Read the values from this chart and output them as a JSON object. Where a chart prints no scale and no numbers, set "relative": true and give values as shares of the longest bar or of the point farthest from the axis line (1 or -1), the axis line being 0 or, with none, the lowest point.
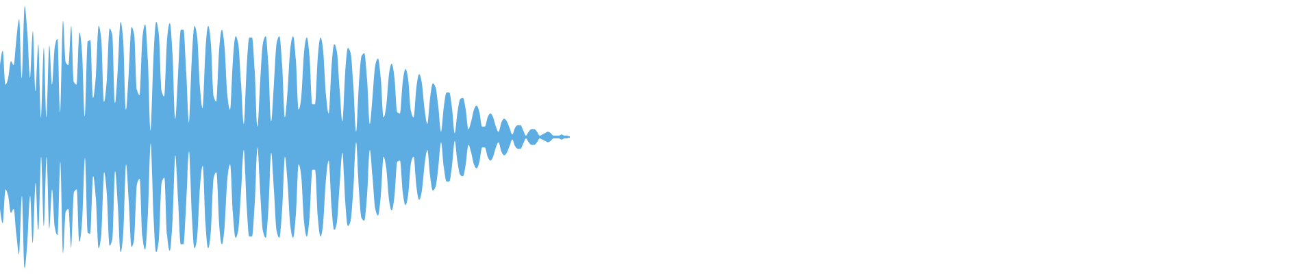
{
  "chart_data": {
    "type": "area",
    "relative": true,
    "categories": [
      null,
      null,
      null,
      null,
      null,
      null,
      null,
      null,
      null,
      null,
      null,
      null,
      null,
      null,
      null,
      null,
      null,
      null,
      null,
      null,
      null,
      null,
      null,
      null,
      null,
      null,
      null,
      null,
      null,
      null,
      null,
      null,
      null,
      null,
      null,
      null,
      null,
      null,
      null,
      null,
      null,
      null,
      null,
      null,
      null,
      null,
      null,
      null,
      null,
      null,
      null,
      null,
      null,
      null,
      null,
      null,
      null,
      null,
      null,
      null,
      null,
      null,
      null,
      null,
      null,
      null,
      null,
      null,
      null,
      null,
      null,
      null,
      null,
      null,
      null,
      null,
      null,
      null,
      null,
      null,
      null,
      null,
      null,
      null,
      null,
      null,
      null,
      null,
      null,
      null,
      null,
      null,
      null,
      null,
      null,
      null,
      null,
      null,
      null,
      null,
      null,
      null,
      null,
      null,
      null,
      null,
      null,
      null,
      null,
      null,
      null,
      null,
      null,
      null,
      null,
      null,
      null,
      null,
      null,
      null,
      null,
      null,
      null,
      null,
      null,
      null,
      null,
      null,
      null,
      null,
      null,
      null,
      null,
      null,
      null,
      null,
      null,
      null,
      null,
      null,
      null,
      null,
      null,
      null,
      null,
      null,
      null,
      null,
      null,
      null,
      null,
      null,
      null,
      null,
      null,
      null,
      null,
      null,
      null,
      null,
      null,
      null,
      null,
      null,
      null,
      null,
      null,
      null,
      null,
      null,
      null,
      null,
      null,
      null,
      null,
      null,
      null,
      null,
      null,
      null,
      null,
      null,
      null,
      null,
      null,
      null,
      null,
      null,
      null,
      null,
      null,
      null,
      null,
      null,
      null,
      null,
      null,
      null,
      null,
      null,
      null,
      null,
      null,
      null,
      null,
      null,
      null,
      null,
      null
    ],
    "ref_lines": [
      {
        "axis": "y",
        "value": 0,
        "color": "#5dade2"
      }
    ],
    "series": [
      {
        "color": "#5dade2",
        "values": [
          0.55,
          0.66,
          0.4,
          0.45,
          0.58,
          0.55,
          0.75,
          0.9,
          0.45,
          1,
          0.8,
          0.45,
          0.81,
          0.35,
          0.71,
          0.15,
          0.68,
          0.15,
          0.7,
          0.4,
          0.69,
          0.75,
          0.19,
          0.89,
          0.57,
          0.55,
          0.85,
          0.42,
          0.4,
          0.8,
          0.63,
          0.16,
          0.73,
          0.74,
          0.3,
          0.47,
          0.85,
          0.74,
          0.27,
          0.44,
          0.83,
          0.78,
          0.26,
          0.52,
          0.88,
          0.73,
          0.21,
          0.49,
          0.84,
          0.78,
          0.36,
          0.32,
          0.76,
          0.86,
          0.58,
          0.05,
          0.59,
          0.88,
          0.78,
          0.35,
          0.31,
          0.75,
          0.87,
          0.63,
          0.14,
          0.48,
          0.82,
          0.82,
          0.49,
          0.11,
          0.59,
          0.85,
          0.76,
          0.38,
          0.22,
          0.66,
          0.85,
          0.71,
          0.31,
          0.27,
          0.67,
          0.82,
          0.68,
          0.32,
          0.21,
          0.58,
          0.77,
          0.71,
          0.41,
          0.1,
          0.51,
          0.76,
          0.76,
          0.5,
          0.08,
          0.43,
          0.72,
          0.77,
          0.54,
          0.12,
          0.41,
          0.72,
          0.77,
          0.55,
          0.15,
          0.36,
          0.68,
          0.77,
          0.59,
          0.21,
          0.31,
          0.65,
          0.76,
          0.61,
          0.25,
          0.25,
          0.61,
          0.76,
          0.65,
          0.32,
          0.18,
          0.53,
          0.71,
          0.65,
          0.36,
          0.12,
          0.49,
          0.68,
          0.64,
          0.39,
          0.04,
          0.4,
          0.62,
          0.64,
          0.44,
          0.1,
          0.31,
          0.55,
          0.6,
          0.45,
          0.15,
          0.24,
          0.48,
          0.56,
          0.45,
          0.19,
          0.18,
          0.42,
          0.52,
          0.44,
          0.2,
          0.15,
          0.38,
          0.48,
          0.41,
          0.21,
          0.1,
          0.3,
          0.41,
          0.38,
          0.23,
          0.04,
          0.23,
          0.34,
          0.34,
          0.22,
          0.03,
          0.19,
          0.29,
          0.3,
          0.21,
          0.06,
          0.12,
          0.21,
          0.24,
          0.19,
          0.08,
          0.08,
          0.15,
          0.18,
          0.15,
          0.08,
          0.04,
          0.11,
          0.14,
          0.12,
          0.07,
          0.02,
          0.07,
          0.09,
          0.09,
          0.05,
          0.01,
          0.04,
          0.06,
          0.06,
          0.04,
          0.01,
          0.02,
          0.03,
          0.04,
          0.03,
          0.01,
          0.01,
          0.01,
          0.02,
          0.01,
          0.01,
          0
        ]
      },
      {
        "color": "#5dade2",
        "values": [
          -0.55,
          -0.66,
          -0.4,
          -0.45,
          -0.58,
          -0.55,
          -0.75,
          -0.9,
          -0.45,
          -1,
          -0.8,
          -0.45,
          -0.81,
          -0.35,
          -0.71,
          -0.15,
          -0.68,
          -0.15,
          -0.7,
          -0.4,
          -0.69,
          -0.75,
          -0.19,
          -0.89,
          -0.57,
          -0.55,
          -0.85,
          -0.42,
          -0.4,
          -0.8,
          -0.63,
          -0.16,
          -0.73,
          -0.74,
          -0.3,
          -0.47,
          -0.85,
          -0.74,
          -0.27,
          -0.44,
          -0.83,
          -0.78,
          -0.26,
          -0.52,
          -0.88,
          -0.73,
          -0.21,
          -0.49,
          -0.84,
          -0.78,
          -0.36,
          -0.32,
          -0.76,
          -0.86,
          -0.58,
          -0.05,
          -0.59,
          -0.88,
          -0.78,
          -0.35,
          -0.31,
          -0.75,
          -0.87,
          -0.63,
          -0.14,
          -0.48,
          -0.82,
          -0.82,
          -0.49,
          -0.11,
          -0.59,
          -0.85,
          -0.76,
          -0.38,
          -0.22,
          -0.66,
          -0.85,
          -0.71,
          -0.31,
          -0.27,
          -0.67,
          -0.82,
          -0.68,
          -0.32,
          -0.21,
          -0.58,
          -0.77,
          -0.71,
          -0.41,
          -0.1,
          -0.51,
          -0.76,
          -0.76,
          -0.5,
          -0.08,
          -0.43,
          -0.72,
          -0.77,
          -0.54,
          -0.12,
          -0.41,
          -0.72,
          -0.77,
          -0.55,
          -0.15,
          -0.36,
          -0.68,
          -0.77,
          -0.59,
          -0.21,
          -0.31,
          -0.65,
          -0.76,
          -0.61,
          -0.25,
          -0.25,
          -0.61,
          -0.76,
          -0.65,
          -0.32,
          -0.18,
          -0.53,
          -0.71,
          -0.65,
          -0.36,
          -0.12,
          -0.49,
          -0.68,
          -0.64,
          -0.39,
          -0.04,
          -0.4,
          -0.62,
          -0.64,
          -0.44,
          -0.1,
          -0.31,
          -0.55,
          -0.6,
          -0.45,
          -0.15,
          -0.24,
          -0.48,
          -0.56,
          -0.45,
          -0.19,
          -0.18,
          -0.42,
          -0.52,
          -0.44,
          -0.2,
          -0.15,
          -0.38,
          -0.48,
          -0.41,
          -0.21,
          -0.1,
          -0.3,
          -0.41,
          -0.38,
          -0.23,
          -0.04,
          -0.23,
          -0.34,
          -0.34,
          -0.22,
          -0.03,
          -0.19,
          -0.29,
          -0.3,
          -0.21,
          -0.06,
          -0.12,
          -0.21,
          -0.24,
          -0.19,
          -0.08,
          -0.08,
          -0.15,
          -0.18,
          -0.15,
          -0.08,
          -0.04,
          -0.11,
          -0.14,
          -0.12,
          -0.07,
          -0.02,
          -0.07,
          -0.09,
          -0.09,
          -0.05,
          -0.01,
          -0.04,
          -0.06,
          -0.06,
          -0.04,
          -0.01,
          -0.02,
          -0.03,
          -0.04,
          -0.03,
          -0.01,
          -0.01,
          -0.01,
          -0.02,
          -0.01,
          -0.01,
          0
        ]
      }
    ]
  }
}
